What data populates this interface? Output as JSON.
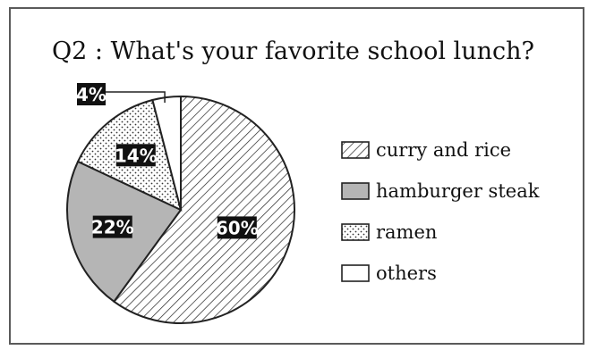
{
  "chart_data": {
    "type": "pie",
    "title": "Q2 : What's your favorite school lunch?",
    "categories": [
      "curry and rice",
      "hamburger steak",
      "ramen",
      "others"
    ],
    "values": [
      60,
      22,
      14,
      4
    ],
    "value_labels": [
      "60%",
      "22%",
      "14%",
      "4%"
    ],
    "patterns": [
      "diagonal-hatch",
      "solid-gray",
      "dotted",
      "blank"
    ],
    "fill_colors": [
      "#ffffff",
      "#b5b5b5",
      "#ffffff",
      "#ffffff"
    ],
    "legend_position": "right"
  }
}
